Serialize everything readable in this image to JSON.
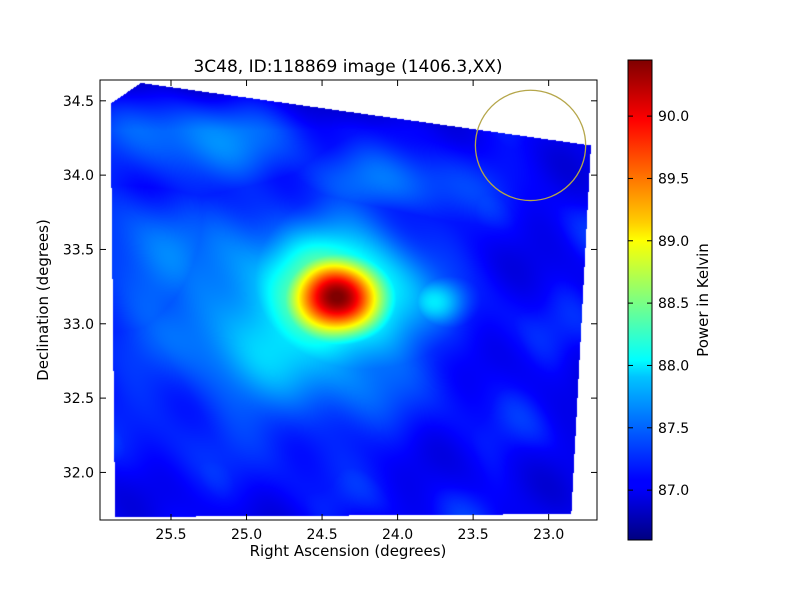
{
  "chart_data": {
    "type": "heatmap",
    "title": "3C48, ID:118869 image (1406.3,XX)",
    "xlabel": "Right Ascension (degrees)",
    "ylabel": "Declination (degrees)",
    "xlim": [
      25.97,
      22.68
    ],
    "ylim": [
      31.68,
      34.64
    ],
    "x_ticks": [
      25.5,
      25.0,
      24.5,
      24.0,
      23.5,
      23.0
    ],
    "x_tick_labels": [
      "25.5",
      "25.0",
      "24.5",
      "24.0",
      "23.5",
      "23.0"
    ],
    "y_ticks": [
      32.0,
      32.5,
      33.0,
      33.5,
      34.0,
      34.5
    ],
    "y_tick_labels": [
      "32.0",
      "32.5",
      "33.0",
      "33.5",
      "34.0",
      "34.5"
    ],
    "colorbar": {
      "label": "Power in Kelvin",
      "range": [
        86.6,
        90.45
      ],
      "colormap": "jet",
      "ticks": [
        87.0,
        87.5,
        88.0,
        88.5,
        89.0,
        89.5,
        90.0
      ],
      "tick_labels": [
        "87.0",
        "87.5",
        "88.0",
        "88.5",
        "89.0",
        "89.5",
        "90.0"
      ]
    },
    "background_level": 87.05,
    "footprint_corners": [
      [
        25.9,
        34.48
      ],
      [
        25.7,
        34.62
      ],
      [
        22.72,
        34.2
      ],
      [
        22.85,
        31.72
      ],
      [
        25.87,
        31.7
      ]
    ],
    "sources": [
      {
        "ra": 24.4,
        "dec": 33.17,
        "peak": 90.45,
        "sigma_ra": 0.24,
        "sigma_dec": 0.2
      },
      {
        "ra": 24.45,
        "dec": 33.18,
        "peak": 88.6,
        "sigma_ra": 0.42,
        "sigma_dec": 0.35
      },
      {
        "ra": 24.7,
        "dec": 33.05,
        "peak": 87.95,
        "sigma_ra": 0.6,
        "sigma_dec": 0.5
      },
      {
        "ra": 25.6,
        "dec": 33.4,
        "peak": 87.55,
        "sigma_ra": 0.35,
        "sigma_dec": 0.35
      },
      {
        "ra": 25.3,
        "dec": 34.25,
        "peak": 87.55,
        "sigma_ra": 0.5,
        "sigma_dec": 0.25
      },
      {
        "ra": 23.75,
        "dec": 33.15,
        "peak": 87.85,
        "sigma_ra": 0.15,
        "sigma_dec": 0.12
      },
      {
        "ra": 25.25,
        "dec": 32.85,
        "peak": 87.4,
        "sigma_ra": 0.5,
        "sigma_dec": 0.5
      },
      {
        "ra": 24.05,
        "dec": 33.95,
        "peak": 87.45,
        "sigma_ra": 0.45,
        "sigma_dec": 0.18
      }
    ],
    "beam_circle": {
      "ra": 23.12,
      "dec": 34.2,
      "radius_deg": 0.365,
      "color": "#b5a64a"
    }
  }
}
